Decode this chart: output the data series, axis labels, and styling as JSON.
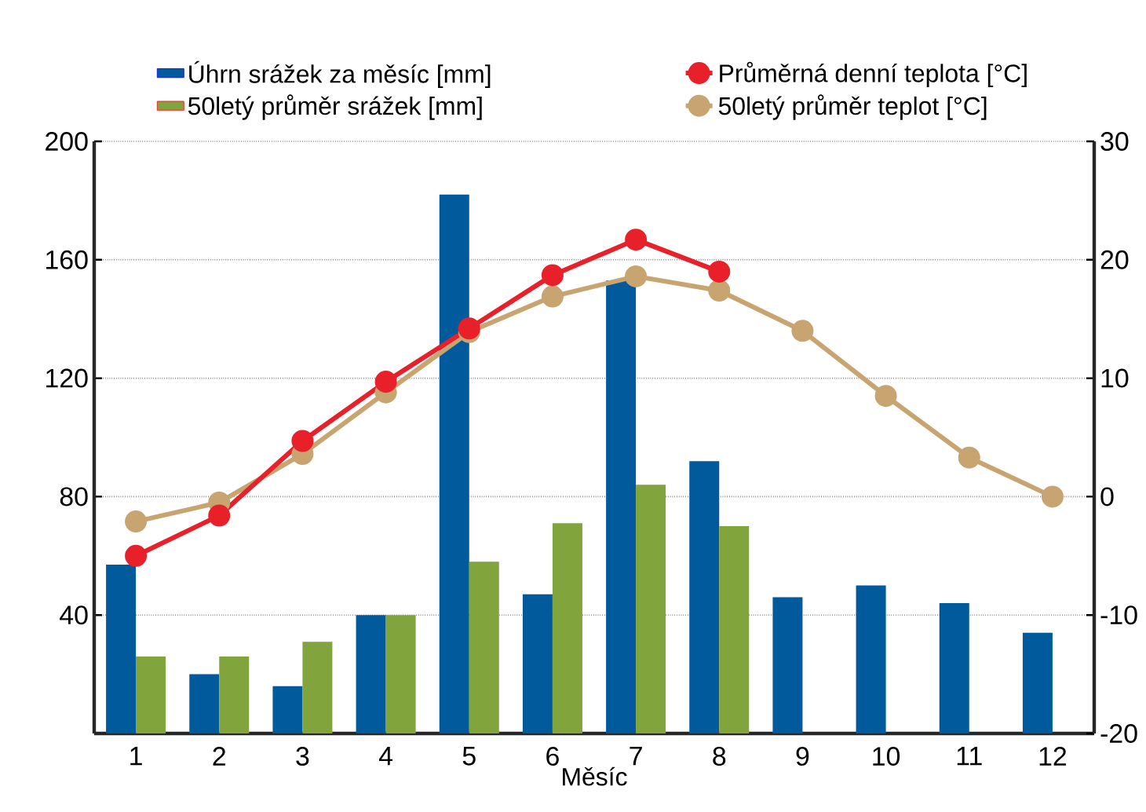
{
  "chart_data": {
    "type": "bar",
    "xlabel": "Měsíc",
    "categories": [
      "1",
      "2",
      "3",
      "4",
      "5",
      "6",
      "7",
      "8",
      "9",
      "10",
      "11",
      "12"
    ],
    "series": [
      {
        "name": "Úhrn srážek za měsíc [mm]",
        "color": "#005a9c",
        "values": [
          57,
          20,
          16,
          40,
          182,
          47,
          153,
          92,
          46,
          50,
          44,
          34
        ]
      },
      {
        "name": "50letý průměr srážek [mm]",
        "color": "#82a43c",
        "values": [
          26,
          26,
          31,
          40,
          58,
          71,
          84,
          70,
          null,
          null,
          null,
          null
        ]
      },
      {
        "name": "Průměrná denní teplota [°C]",
        "type": "line",
        "axis": "y2",
        "color": "#e8202a",
        "values": [
          -5.0,
          -1.6,
          4.7,
          9.7,
          14.2,
          18.7,
          21.7,
          19.0,
          null,
          null,
          null,
          null
        ]
      },
      {
        "name": "50letý průměr teplot [°C]",
        "type": "line",
        "axis": "y2",
        "color": "#c8a470",
        "values": [
          -2.1,
          -0.5,
          3.6,
          8.8,
          13.9,
          16.9,
          18.6,
          17.4,
          14.0,
          8.5,
          3.3,
          0
        ]
      }
    ],
    "ylim": [
      0,
      200
    ],
    "yticks": [
      40,
      80,
      120,
      160,
      200
    ],
    "y2lim": [
      -20,
      30
    ],
    "y2ticks": [
      -20,
      -10,
      0,
      10,
      20,
      30
    ],
    "grid": "y",
    "legend": "top",
    "marker": "circle",
    "line_style": "solid"
  }
}
